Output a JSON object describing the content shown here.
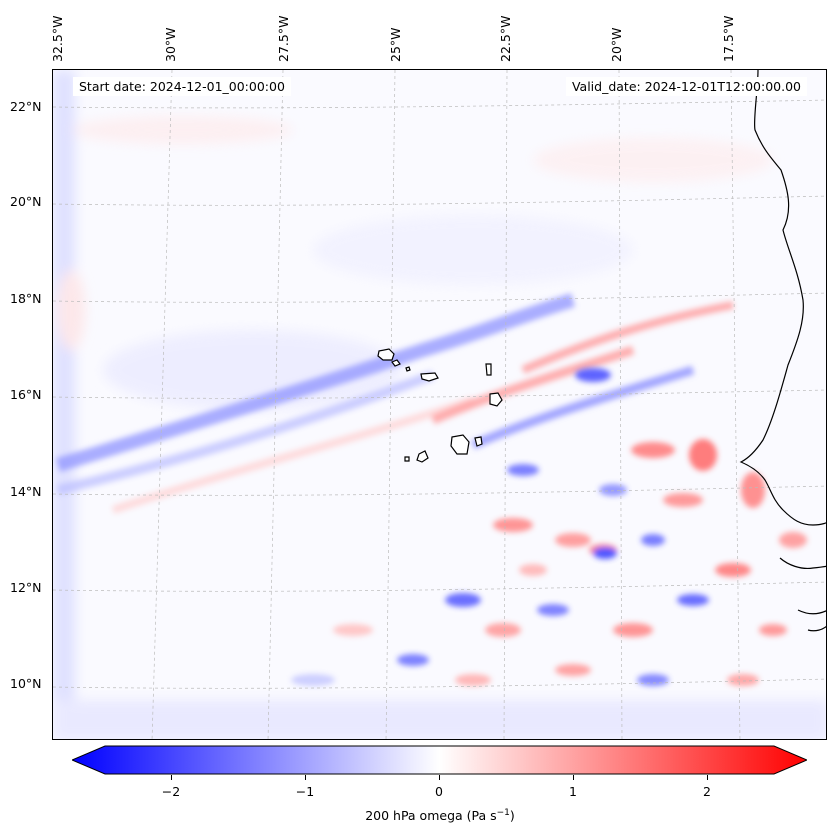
{
  "map": {
    "title_left": "Start date: 2024-12-01_00:00:00",
    "title_right": "Valid_date: 2024-12-01T12:00:00.00",
    "lon_labels": [
      "32.5°W",
      "30°W",
      "27.5°W",
      "25°W",
      "22.5°W",
      "20°W",
      "17.5°W"
    ],
    "lat_labels": [
      "22°N",
      "20°N",
      "18°N",
      "16°N",
      "14°N",
      "12°N",
      "10°N"
    ],
    "colormap": "bwr",
    "colors": {
      "negative": "#0000ff",
      "neutral": "#ffffff",
      "positive": "#ff0000",
      "coastline": "#000000"
    }
  },
  "colorbar": {
    "label": "200 hPa omega (Pa s",
    "label_sup": "−1",
    "label_close": ")",
    "ticks": [
      "−2",
      "−1",
      "0",
      "1",
      "2"
    ],
    "range": [
      -2.5,
      2.5
    ],
    "extend": "both"
  }
}
